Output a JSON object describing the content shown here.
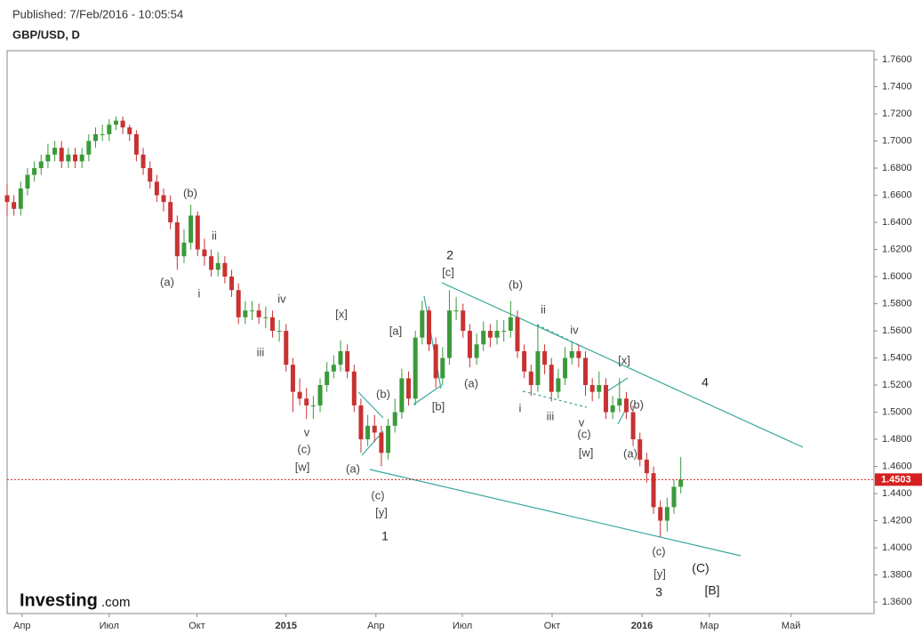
{
  "header": {
    "published": "Published: 7/Feb/2016 - 10:05:54",
    "symbol": "GBP/USD, D"
  },
  "logo": {
    "brand": "Investing",
    "suffix": ".com"
  },
  "chart_data": {
    "type": "candlestick",
    "up_color": "#3a9a3a",
    "down_color": "#c83232",
    "x": [
      0,
      1,
      2,
      3,
      4,
      5,
      6,
      7,
      8,
      9,
      10,
      11,
      12,
      13,
      14,
      15,
      16,
      17,
      18,
      19,
      20,
      21,
      22,
      23,
      24,
      25,
      26,
      27,
      28,
      29,
      30,
      31,
      32,
      33,
      34,
      35,
      36,
      37,
      38,
      39,
      40,
      41,
      42,
      43,
      44,
      45,
      46,
      47,
      48,
      49,
      50,
      51,
      52,
      53,
      54,
      55,
      56,
      57,
      58,
      59,
      60,
      61,
      62,
      63,
      64,
      65,
      66,
      67,
      68,
      69,
      70,
      71,
      72,
      73,
      74,
      75,
      76,
      77,
      78,
      79,
      80,
      81,
      82,
      83,
      84,
      85,
      86,
      87,
      88,
      89,
      90,
      91,
      92,
      93,
      94,
      95,
      96,
      97,
      98,
      99
    ],
    "open": [
      1.66,
      1.655,
      1.65,
      1.665,
      1.675,
      1.68,
      1.685,
      1.69,
      1.695,
      1.685,
      1.69,
      1.685,
      1.69,
      1.7,
      1.705,
      1.705,
      1.712,
      1.715,
      1.71,
      1.705,
      1.69,
      1.68,
      1.67,
      1.66,
      1.655,
      1.64,
      1.615,
      1.625,
      1.645,
      1.62,
      1.615,
      1.605,
      1.61,
      1.6,
      1.59,
      1.57,
      1.575,
      1.575,
      1.57,
      1.57,
      1.56,
      1.56,
      1.535,
      1.515,
      1.51,
      1.505,
      1.505,
      1.52,
      1.53,
      1.535,
      1.545,
      1.53,
      1.505,
      1.48,
      1.49,
      1.485,
      1.47,
      1.49,
      1.5,
      1.525,
      1.51,
      1.555,
      1.575,
      1.55,
      1.525,
      1.54,
      1.575,
      1.575,
      1.56,
      1.54,
      1.55,
      1.56,
      1.555,
      1.56,
      1.56,
      1.57,
      1.545,
      1.53,
      1.52,
      1.545,
      1.535,
      1.515,
      1.525,
      1.54,
      1.545,
      1.54,
      1.52,
      1.515,
      1.52,
      1.5,
      1.505,
      1.51,
      1.5,
      1.48,
      1.465,
      1.455,
      1.43,
      1.42,
      1.43,
      1.445
    ],
    "high": [
      1.668,
      1.66,
      1.67,
      1.68,
      1.685,
      1.69,
      1.698,
      1.7,
      1.7,
      1.695,
      1.695,
      1.695,
      1.705,
      1.71,
      1.712,
      1.716,
      1.718,
      1.718,
      1.712,
      1.708,
      1.695,
      1.685,
      1.675,
      1.665,
      1.66,
      1.645,
      1.635,
      1.653,
      1.648,
      1.628,
      1.62,
      1.618,
      1.615,
      1.605,
      1.595,
      1.582,
      1.582,
      1.58,
      1.578,
      1.575,
      1.568,
      1.565,
      1.54,
      1.525,
      1.518,
      1.512,
      1.525,
      1.537,
      1.542,
      1.553,
      1.55,
      1.535,
      1.51,
      1.498,
      1.498,
      1.49,
      1.495,
      1.51,
      1.532,
      1.53,
      1.56,
      1.582,
      1.578,
      1.555,
      1.548,
      1.59,
      1.585,
      1.58,
      1.565,
      1.558,
      1.567,
      1.565,
      1.568,
      1.568,
      1.582,
      1.575,
      1.55,
      1.535,
      1.565,
      1.55,
      1.54,
      1.532,
      1.548,
      1.552,
      1.55,
      1.545,
      1.525,
      1.53,
      1.525,
      1.512,
      1.525,
      1.515,
      1.505,
      1.485,
      1.47,
      1.46,
      1.435,
      1.437,
      1.45,
      1.467
    ],
    "low": [
      1.645,
      1.645,
      1.645,
      1.66,
      1.67,
      1.675,
      1.68,
      1.685,
      1.68,
      1.68,
      1.68,
      1.68,
      1.685,
      1.695,
      1.7,
      1.7,
      1.708,
      1.705,
      1.7,
      1.685,
      1.675,
      1.665,
      1.655,
      1.648,
      1.635,
      1.605,
      1.61,
      1.62,
      1.615,
      1.608,
      1.6,
      1.6,
      1.595,
      1.585,
      1.565,
      1.565,
      1.568,
      1.565,
      1.562,
      1.555,
      1.552,
      1.53,
      1.5,
      1.505,
      1.495,
      1.495,
      1.5,
      1.515,
      1.525,
      1.53,
      1.525,
      1.5,
      1.47,
      1.475,
      1.478,
      1.46,
      1.465,
      1.485,
      1.495,
      1.505,
      1.505,
      1.55,
      1.545,
      1.518,
      1.52,
      1.535,
      1.568,
      1.555,
      1.533,
      1.535,
      1.545,
      1.548,
      1.55,
      1.552,
      1.555,
      1.54,
      1.525,
      1.512,
      1.515,
      1.528,
      1.508,
      1.51,
      1.52,
      1.535,
      1.533,
      1.512,
      1.508,
      1.51,
      1.495,
      1.495,
      1.5,
      1.495,
      1.475,
      1.46,
      1.448,
      1.425,
      1.408,
      1.412,
      1.425,
      1.44
    ],
    "close": [
      1.655,
      1.65,
      1.665,
      1.675,
      1.68,
      1.685,
      1.69,
      1.695,
      1.685,
      1.69,
      1.685,
      1.69,
      1.7,
      1.705,
      1.705,
      1.712,
      1.715,
      1.71,
      1.705,
      1.69,
      1.68,
      1.67,
      1.66,
      1.655,
      1.64,
      1.615,
      1.625,
      1.645,
      1.62,
      1.615,
      1.605,
      1.61,
      1.6,
      1.59,
      1.57,
      1.575,
      1.575,
      1.57,
      1.57,
      1.56,
      1.56,
      1.535,
      1.515,
      1.51,
      1.505,
      1.505,
      1.52,
      1.53,
      1.535,
      1.545,
      1.53,
      1.505,
      1.48,
      1.49,
      1.485,
      1.47,
      1.49,
      1.5,
      1.525,
      1.51,
      1.555,
      1.575,
      1.55,
      1.525,
      1.54,
      1.575,
      1.575,
      1.56,
      1.54,
      1.55,
      1.56,
      1.555,
      1.56,
      1.56,
      1.57,
      1.545,
      1.53,
      1.52,
      1.545,
      1.535,
      1.515,
      1.525,
      1.54,
      1.545,
      1.54,
      1.52,
      1.515,
      1.52,
      1.5,
      1.505,
      1.51,
      1.5,
      1.48,
      1.465,
      1.455,
      1.43,
      1.42,
      1.43,
      1.445,
      1.4503
    ],
    "last_price": 1.4503,
    "price_line_color": "#d62020",
    "xlim": [
      0,
      127.4
    ],
    "xticks": [
      {
        "value": 2.2,
        "label": "Апр"
      },
      {
        "value": 15.0,
        "label": "Июл"
      },
      {
        "value": 27.9,
        "label": "Окт"
      },
      {
        "value": 41.0,
        "label": "2015"
      },
      {
        "value": 54.2,
        "label": "Апр"
      },
      {
        "value": 66.9,
        "label": "Июл"
      },
      {
        "value": 80.1,
        "label": "Окт"
      },
      {
        "value": 93.3,
        "label": "2016"
      },
      {
        "value": 103.2,
        "label": "Мар"
      },
      {
        "value": 115.2,
        "label": "Май"
      }
    ],
    "ylim": [
      1.3515,
      1.7666
    ],
    "yticks": [
      {
        "value": 1.36,
        "label": "1.3600"
      },
      {
        "value": 1.38,
        "label": "1.3800"
      },
      {
        "value": 1.4,
        "label": "1.4000"
      },
      {
        "value": 1.42,
        "label": "1.4200"
      },
      {
        "value": 1.44,
        "label": "1.4400"
      },
      {
        "value": 1.46,
        "label": "1.4600"
      },
      {
        "value": 1.48,
        "label": "1.4800"
      },
      {
        "value": 1.5,
        "label": "1.5000"
      },
      {
        "value": 1.52,
        "label": "1.5200"
      },
      {
        "value": 1.54,
        "label": "1.5400"
      },
      {
        "value": 1.56,
        "label": "1.5600"
      },
      {
        "value": 1.58,
        "label": "1.5800"
      },
      {
        "value": 1.6,
        "label": "1.6000"
      },
      {
        "value": 1.62,
        "label": "1.6200"
      },
      {
        "value": 1.64,
        "label": "1.6400"
      },
      {
        "value": 1.66,
        "label": "1.6600"
      },
      {
        "value": 1.68,
        "label": "1.6800"
      },
      {
        "value": 1.7,
        "label": "1.7000"
      },
      {
        "value": 1.72,
        "label": "1.7200"
      },
      {
        "value": 1.74,
        "label": "1.7400"
      },
      {
        "value": 1.76,
        "label": "1.7600"
      }
    ],
    "annotations": [
      "(b)",
      "ii",
      "(a)",
      "i",
      "iv",
      "iii",
      "[x]",
      "v",
      "(c)",
      "[w]",
      "(b)",
      "(a)",
      "(c)",
      "[y]",
      "1",
      "[a]",
      "[b]",
      "2",
      "[c]",
      "(a)",
      "(b)",
      "ii",
      "iv",
      "i",
      "iii",
      "v",
      "(c)",
      "[w]",
      "[x]",
      "(b)",
      "(a)",
      "4",
      "(c)",
      "[y]",
      "3",
      "(C)",
      "[B]"
    ]
  }
}
